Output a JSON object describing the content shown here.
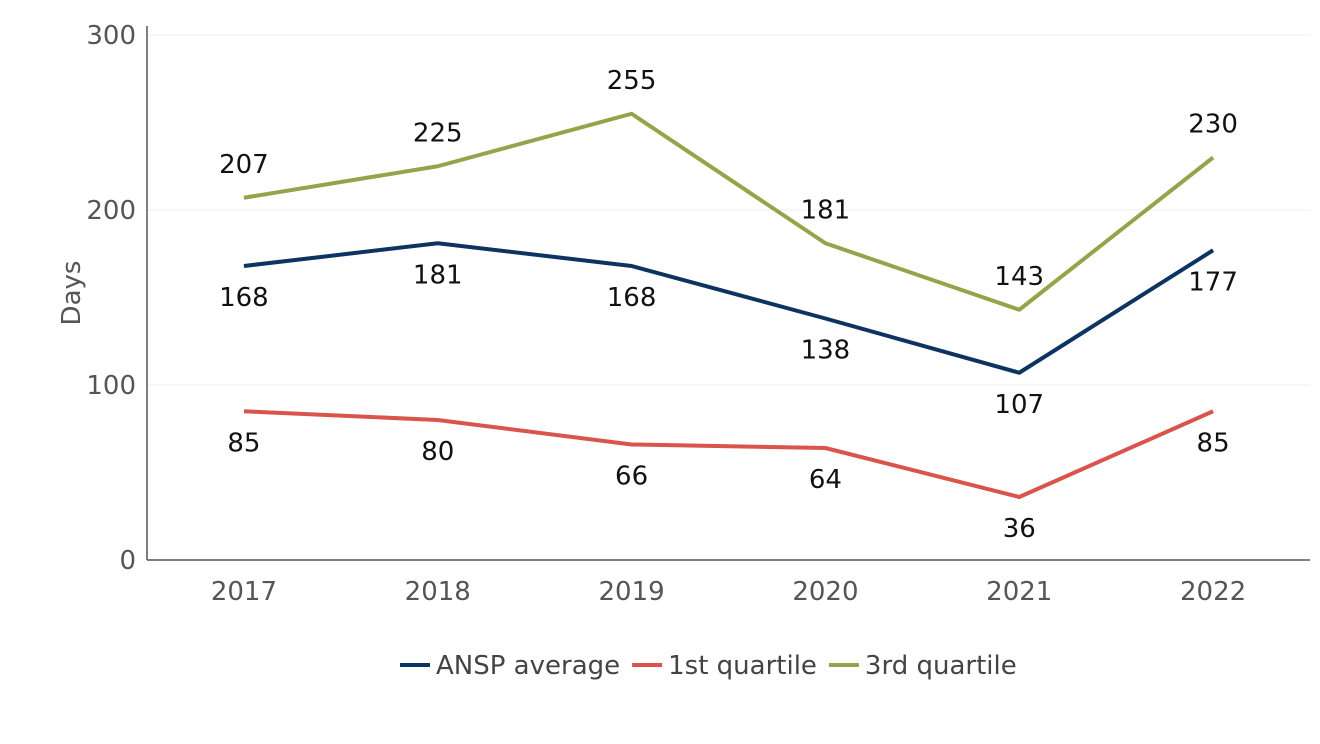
{
  "chart_data": {
    "type": "line",
    "x": [
      "2017",
      "2018",
      "2019",
      "2020",
      "2021",
      "2022"
    ],
    "ylabel": "Days",
    "ylim": [
      0,
      300
    ],
    "yticks": [
      0,
      100,
      200,
      300
    ],
    "grid": true,
    "legend_position": "bottom",
    "series": [
      {
        "name": "ANSP average",
        "color": "#0d3461",
        "values": [
          168,
          181,
          168,
          138,
          107,
          177
        ],
        "label_side": "below"
      },
      {
        "name": "1st quartile",
        "color": "#d9544d",
        "values": [
          85,
          80,
          66,
          64,
          36,
          85
        ],
        "label_side": "below"
      },
      {
        "name": "3rd quartile",
        "color": "#98a24a",
        "values": [
          207,
          225,
          255,
          181,
          143,
          230
        ],
        "label_side": "above"
      }
    ]
  }
}
